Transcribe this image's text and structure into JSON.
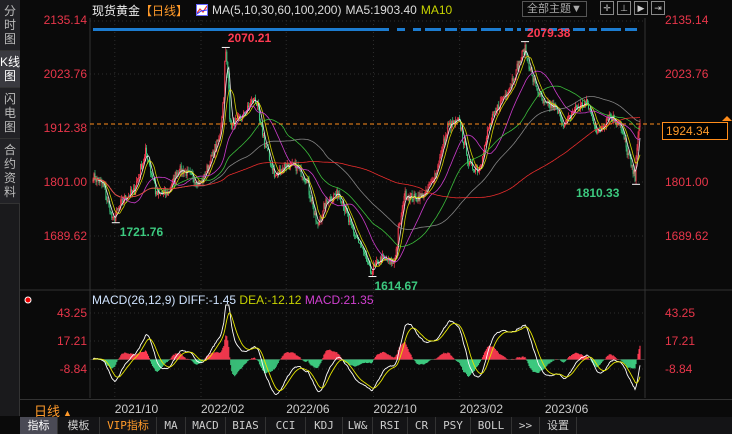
{
  "sidebar": {
    "items": [
      {
        "label": "分时图"
      },
      {
        "label": "K线图",
        "active": true
      },
      {
        "label": "闪电图"
      },
      {
        "label": "合约资料"
      }
    ]
  },
  "header": {
    "instrument": "现货黄金",
    "period": "【日线】",
    "ma_icon": "ma-chart-icon",
    "ma_params": "MA(5,10,30,60,100,200)",
    "ma5": "MA5:1903.40",
    "ma10": "MA10",
    "theme_button": "全部主题▼",
    "tool_icons": [
      "crosshair-icon",
      "zoom-fit-icon",
      "play-icon",
      "jump-end-icon"
    ]
  },
  "price": {
    "current": "1924.34",
    "colors": {
      "up": "#ff3b52",
      "down": "#3cc97f",
      "current_line": "#ff8c1a"
    }
  },
  "macd": {
    "title": "MACD(26,12,9)",
    "diff": "DIFF:-1.45",
    "dea": "DEA:-12.12",
    "macd": "MACD:21.35",
    "ticks": [
      "43.25",
      "17.21",
      "-8.84"
    ]
  },
  "footer": {
    "period": "日线",
    "period_arrow": "▲",
    "tabs": [
      "指标",
      "模板",
      "VIP指标",
      "MA",
      "MACD",
      "BIAS",
      "CCI",
      "KDJ",
      "LW&",
      "RSI",
      "CR",
      "PSY",
      "BOLL",
      ">>",
      "设置"
    ]
  },
  "chart_data": {
    "type": "candlestick",
    "y_ticks": [
      "2135.14",
      "2023.76",
      "1912.38",
      "1801.00",
      "1689.62"
    ],
    "ylim": [
      1689.62,
      2135.14
    ],
    "x_ticks": [
      "2021/10",
      "2022/02",
      "2022/06",
      "2022/10",
      "2023/02",
      "2023/06"
    ],
    "annotations": {
      "high1": "2070.21",
      "low1": "1721.76",
      "low2": "1614.67",
      "high2": "2079.38",
      "low3": "1810.33"
    },
    "ma_colors": {
      "MA5": "#ffffff",
      "MA10": "#e6e600",
      "MA30": "#e040e0",
      "MA60": "#40d040",
      "MA100": "#909090",
      "MA200": "#ff3030"
    },
    "close_series": [
      [
        "2021-09-01",
        1813
      ],
      [
        "2021-09-15",
        1795
      ],
      [
        "2021-09-29",
        1722
      ],
      [
        "2021-10-15",
        1768
      ],
      [
        "2021-10-29",
        1783
      ],
      [
        "2021-11-15",
        1865
      ],
      [
        "2021-11-30",
        1775
      ],
      [
        "2021-12-15",
        1778
      ],
      [
        "2021-12-31",
        1829
      ],
      [
        "2022-01-14",
        1818
      ],
      [
        "2022-01-31",
        1797
      ],
      [
        "2022-02-15",
        1850
      ],
      [
        "2022-02-28",
        1900
      ],
      [
        "2022-03-08",
        2068
      ],
      [
        "2022-03-15",
        1918
      ],
      [
        "2022-03-31",
        1937
      ],
      [
        "2022-04-18",
        1978
      ],
      [
        "2022-04-29",
        1896
      ],
      [
        "2022-05-16",
        1812
      ],
      [
        "2022-05-31",
        1837
      ],
      [
        "2022-06-15",
        1833
      ],
      [
        "2022-06-30",
        1807
      ],
      [
        "2022-07-15",
        1708
      ],
      [
        "2022-07-29",
        1766
      ],
      [
        "2022-08-15",
        1779
      ],
      [
        "2022-08-31",
        1711
      ],
      [
        "2022-09-15",
        1665
      ],
      [
        "2022-09-28",
        1616
      ],
      [
        "2022-10-14",
        1644
      ],
      [
        "2022-10-31",
        1633
      ],
      [
        "2022-11-15",
        1776
      ],
      [
        "2022-11-30",
        1768
      ],
      [
        "2022-12-15",
        1777
      ],
      [
        "2022-12-30",
        1824
      ],
      [
        "2023-01-16",
        1917
      ],
      [
        "2023-01-31",
        1928
      ],
      [
        "2023-02-15",
        1836
      ],
      [
        "2023-02-28",
        1827
      ],
      [
        "2023-03-15",
        1918
      ],
      [
        "2023-03-31",
        1969
      ],
      [
        "2023-04-14",
        2003
      ],
      [
        "2023-05-04",
        2077
      ],
      [
        "2023-05-15",
        2017
      ],
      [
        "2023-05-31",
        1962
      ],
      [
        "2023-06-15",
        1957
      ],
      [
        "2023-06-30",
        1919
      ],
      [
        "2023-07-14",
        1955
      ],
      [
        "2023-07-31",
        1965
      ],
      [
        "2023-08-15",
        1902
      ],
      [
        "2023-08-31",
        1940
      ],
      [
        "2023-09-15",
        1924
      ],
      [
        "2023-09-29",
        1848
      ],
      [
        "2023-10-06",
        1812
      ],
      [
        "2023-10-13",
        1924
      ]
    ]
  }
}
